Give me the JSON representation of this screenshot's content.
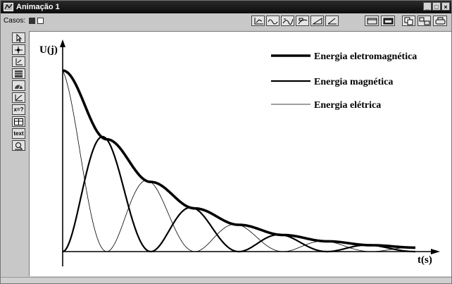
{
  "window": {
    "title": "Animação 1",
    "controls": {
      "minimize": "_",
      "maximize": "□",
      "close": "×"
    }
  },
  "toolbar": {
    "casos_label": "Casos:",
    "icons": [
      "axes-icon",
      "sine-wave-icon",
      "curve-icon",
      "zoom-curve-icon",
      "triangle-angle-icon",
      "angle-icon",
      "window-icon",
      "window-dark-icon",
      "copy-icon",
      "layout-icon",
      "print-icon"
    ]
  },
  "side_toolbar": {
    "items": [
      {
        "name": "arrow-tool-icon",
        "text": ""
      },
      {
        "name": "point-tool-icon",
        "text": ""
      },
      {
        "name": "axis-tool-icon",
        "text": ""
      },
      {
        "name": "bar-tool-icon",
        "text": ""
      },
      {
        "name": "gauge-tool-icon",
        "text": ""
      },
      {
        "name": "graph-tool-icon",
        "text": ""
      },
      {
        "name": "formula-tool-icon",
        "text": "x=?"
      },
      {
        "name": "table-tool-icon",
        "text": ""
      },
      {
        "name": "text-tool-icon",
        "text": "text"
      },
      {
        "name": "lens-tool-icon",
        "text": ""
      }
    ]
  },
  "chart_data": {
    "type": "line",
    "xlabel": "t(s)",
    "ylabel": "U(j)",
    "ticks": "none",
    "grid": false,
    "legend_position": "top-right",
    "series": [
      {
        "name": "Energia eletromagnética",
        "style": "thick",
        "description_of_shape": "starts at maximum, decays in a staircase of plateaus"
      },
      {
        "name": "Energia magnética",
        "style": "medium",
        "description_of_shape": "starts at zero, oscillates with decaying peaks"
      },
      {
        "name": "Energia elétrica",
        "style": "thin",
        "description_of_shape": "starts at maximum, oscillates with decaying peaks, out of phase with magnetic energy"
      }
    ],
    "model": {
      "initial_energy": 1.0,
      "periods_shown": 4,
      "damping_factor_per_half_period": 0.62
    },
    "colors": {
      "axis": "#000000",
      "curves": "#000000",
      "background": "#ffffff"
    }
  }
}
